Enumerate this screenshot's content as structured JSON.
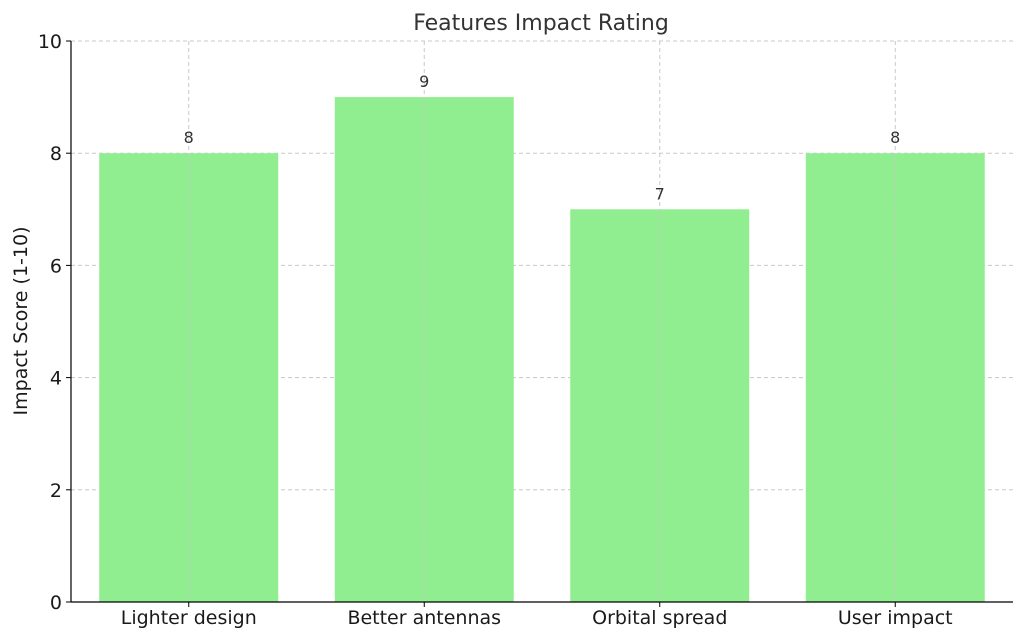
{
  "chart_data": {
    "type": "bar",
    "title": "Features Impact Rating",
    "xlabel": "",
    "ylabel": "Impact Score (1-10)",
    "categories": [
      "Lighter design",
      "Better antennas",
      "Orbital spread",
      "User impact"
    ],
    "values": [
      8,
      9,
      7,
      8
    ],
    "data_labels": [
      "8",
      "9",
      "7",
      "8"
    ],
    "ylim": [
      0,
      10
    ],
    "yticks": [
      0,
      2,
      4,
      6,
      8,
      10
    ],
    "ytick_labels": [
      "0",
      "2",
      "4",
      "6",
      "8",
      "10"
    ],
    "grid": true,
    "bar_color": "#90ee90"
  }
}
